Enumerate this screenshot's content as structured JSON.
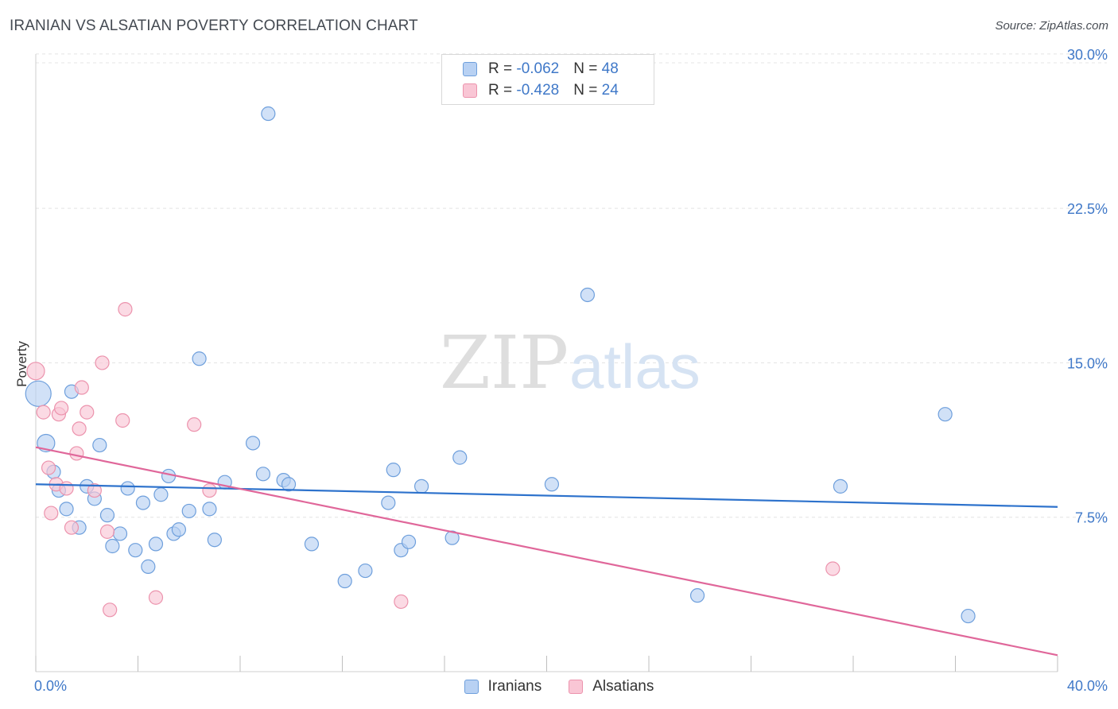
{
  "header": {
    "title": "IRANIAN VS ALSATIAN POVERTY CORRELATION CHART",
    "source": "Source: ZipAtlas.com"
  },
  "legend": {
    "rows": [
      {
        "r_label": "R = ",
        "r_value": "-0.062",
        "n_label": "N = ",
        "n_value": "48"
      },
      {
        "r_label": "R = ",
        "r_value": "-0.428",
        "n_label": "N = ",
        "n_value": "24"
      }
    ]
  },
  "watermark": {
    "zip": "ZIP",
    "atlas": "atlas"
  },
  "colors": {
    "iranians_fill": "#b8d1f3",
    "iranians_stroke": "#6e9fdc",
    "iranians_line": "#2d72cc",
    "alsatians_fill": "#f9c6d5",
    "alsatians_stroke": "#ec93ad",
    "alsatians_line": "#e0679a",
    "tick_text": "#3f78c8",
    "grid": "#e4e4e4"
  },
  "chart_data": {
    "type": "scatter",
    "title": "IRANIAN VS ALSATIAN POVERTY CORRELATION CHART",
    "xlabel": "",
    "ylabel": "Poverty",
    "xlim": [
      0,
      40
    ],
    "ylim": [
      0,
      31
    ],
    "x_tick_labels": [
      "0.0%",
      "40.0%"
    ],
    "y_ticks": [
      {
        "value": 7.5,
        "label": "7.5%"
      },
      {
        "value": 15.0,
        "label": "15.0%"
      },
      {
        "value": 22.5,
        "label": "22.5%"
      },
      {
        "value": 30.0,
        "label": "30.0%"
      }
    ],
    "grid": "horizontal dashed",
    "legend_position": "top-center",
    "series": [
      {
        "name": "Iranians",
        "r": -0.062,
        "n": 48,
        "trend": {
          "x": [
            0,
            40
          ],
          "y": [
            9.1,
            8.0
          ]
        },
        "points": [
          {
            "x": 0.1,
            "y": 13.5,
            "size": "large"
          },
          {
            "x": 0.4,
            "y": 11.1,
            "size": "medium"
          },
          {
            "x": 0.7,
            "y": 9.7
          },
          {
            "x": 0.9,
            "y": 8.8
          },
          {
            "x": 1.2,
            "y": 7.9
          },
          {
            "x": 1.4,
            "y": 13.6
          },
          {
            "x": 1.7,
            "y": 7.0
          },
          {
            "x": 2.0,
            "y": 9.0
          },
          {
            "x": 2.3,
            "y": 8.4
          },
          {
            "x": 2.5,
            "y": 11.0
          },
          {
            "x": 2.8,
            "y": 7.6
          },
          {
            "x": 3.0,
            "y": 6.1
          },
          {
            "x": 3.3,
            "y": 6.7
          },
          {
            "x": 3.6,
            "y": 8.9
          },
          {
            "x": 3.9,
            "y": 5.9
          },
          {
            "x": 4.2,
            "y": 8.2
          },
          {
            "x": 4.4,
            "y": 5.1
          },
          {
            "x": 4.7,
            "y": 6.2
          },
          {
            "x": 4.9,
            "y": 8.6
          },
          {
            "x": 5.2,
            "y": 9.5
          },
          {
            "x": 5.4,
            "y": 6.7
          },
          {
            "x": 5.6,
            "y": 6.9
          },
          {
            "x": 6.0,
            "y": 7.8
          },
          {
            "x": 6.4,
            "y": 15.2
          },
          {
            "x": 6.8,
            "y": 7.9
          },
          {
            "x": 7.0,
            "y": 6.4
          },
          {
            "x": 7.4,
            "y": 9.2
          },
          {
            "x": 8.5,
            "y": 11.1
          },
          {
            "x": 8.9,
            "y": 9.6
          },
          {
            "x": 9.1,
            "y": 27.1
          },
          {
            "x": 9.7,
            "y": 9.3
          },
          {
            "x": 9.9,
            "y": 9.1
          },
          {
            "x": 10.8,
            "y": 6.2
          },
          {
            "x": 12.1,
            "y": 4.4
          },
          {
            "x": 12.9,
            "y": 4.9
          },
          {
            "x": 13.8,
            "y": 8.2
          },
          {
            "x": 14.0,
            "y": 9.8
          },
          {
            "x": 14.3,
            "y": 5.9
          },
          {
            "x": 14.6,
            "y": 6.3
          },
          {
            "x": 15.1,
            "y": 9.0
          },
          {
            "x": 16.3,
            "y": 6.5
          },
          {
            "x": 16.6,
            "y": 10.4
          },
          {
            "x": 20.2,
            "y": 9.1
          },
          {
            "x": 21.6,
            "y": 18.3
          },
          {
            "x": 25.9,
            "y": 3.7
          },
          {
            "x": 31.5,
            "y": 9.0
          },
          {
            "x": 35.6,
            "y": 12.5
          },
          {
            "x": 36.5,
            "y": 2.7
          }
        ]
      },
      {
        "name": "Alsatians",
        "r": -0.428,
        "n": 24,
        "trend": {
          "x": [
            0,
            40
          ],
          "y": [
            10.9,
            0.8
          ]
        },
        "points": [
          {
            "x": 0.0,
            "y": 14.6,
            "size": "medium"
          },
          {
            "x": 0.3,
            "y": 12.6
          },
          {
            "x": 0.5,
            "y": 9.9
          },
          {
            "x": 0.6,
            "y": 7.7
          },
          {
            "x": 0.8,
            "y": 9.1
          },
          {
            "x": 0.9,
            "y": 12.5
          },
          {
            "x": 1.0,
            "y": 12.8
          },
          {
            "x": 1.2,
            "y": 8.9
          },
          {
            "x": 1.4,
            "y": 7.0
          },
          {
            "x": 1.6,
            "y": 10.6
          },
          {
            "x": 1.7,
            "y": 11.8
          },
          {
            "x": 1.8,
            "y": 13.8
          },
          {
            "x": 2.0,
            "y": 12.6
          },
          {
            "x": 2.3,
            "y": 8.8
          },
          {
            "x": 2.6,
            "y": 15.0
          },
          {
            "x": 2.8,
            "y": 6.8
          },
          {
            "x": 2.9,
            "y": 3.0
          },
          {
            "x": 3.4,
            "y": 12.2
          },
          {
            "x": 3.5,
            "y": 17.6
          },
          {
            "x": 4.7,
            "y": 3.6
          },
          {
            "x": 6.2,
            "y": 12.0
          },
          {
            "x": 6.8,
            "y": 8.8
          },
          {
            "x": 14.3,
            "y": 3.4
          },
          {
            "x": 31.2,
            "y": 5.0
          }
        ]
      }
    ]
  },
  "bottom_legend": {
    "items": [
      {
        "label": "Iranians"
      },
      {
        "label": "Alsatians"
      }
    ]
  }
}
